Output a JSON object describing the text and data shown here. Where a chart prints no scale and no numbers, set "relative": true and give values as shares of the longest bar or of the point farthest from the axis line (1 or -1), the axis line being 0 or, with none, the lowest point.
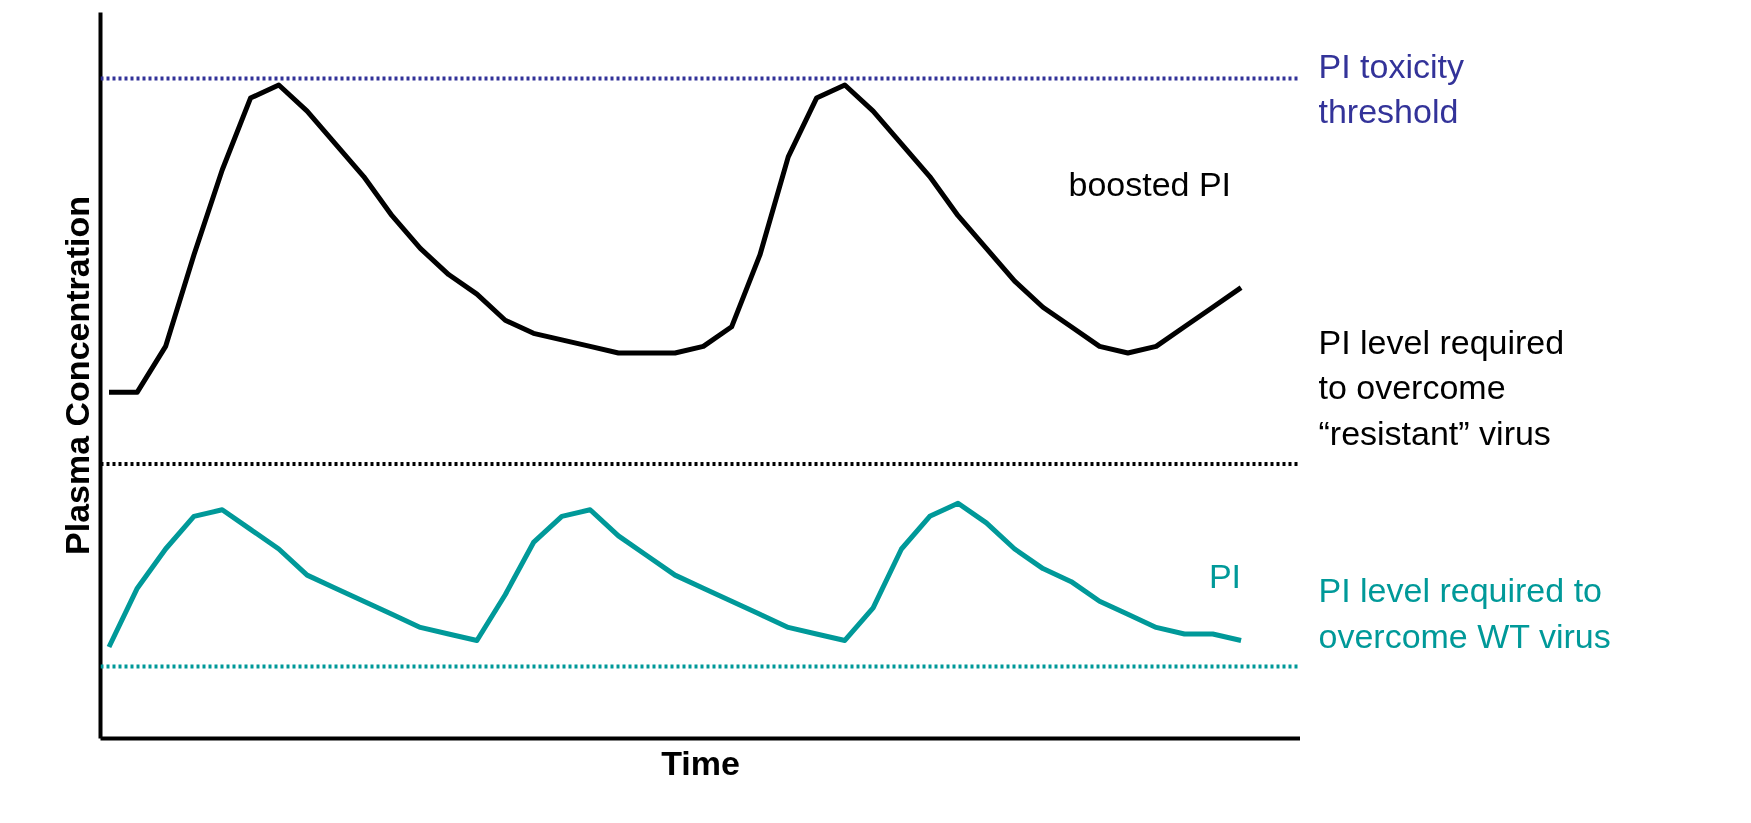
{
  "chart_data": {
    "type": "line",
    "relative": true,
    "xlabel": "Time",
    "ylabel": "Plasma Concentration",
    "line_style": "solid",
    "categories": [
      null,
      null,
      null,
      null,
      null,
      null,
      null,
      null,
      null,
      null,
      null,
      null,
      null,
      null,
      null,
      null,
      null,
      null,
      null,
      null,
      null,
      null,
      null,
      null,
      null,
      null,
      null,
      null,
      null,
      null,
      null,
      null,
      null,
      null,
      null,
      null,
      null,
      null,
      null,
      null,
      null
    ],
    "series": [
      {
        "name": "boosted PI",
        "color": "#000000",
        "values": [
          0.53,
          0.53,
          0.6,
          0.74,
          0.87,
          0.98,
          1.0,
          0.96,
          0.91,
          0.86,
          0.8,
          0.75,
          0.71,
          0.68,
          0.64,
          0.62,
          0.61,
          0.6,
          0.59,
          0.59,
          0.59,
          0.6,
          0.63,
          0.74,
          0.89,
          0.98,
          1.0,
          0.96,
          0.91,
          0.86,
          0.8,
          0.75,
          0.7,
          0.66,
          0.63,
          0.6,
          0.59,
          0.6,
          0.63,
          0.66,
          0.69
        ]
      },
      {
        "name": "PI",
        "color": "#009999",
        "values": [
          0.14,
          0.23,
          0.29,
          0.34,
          0.35,
          0.32,
          0.29,
          0.25,
          0.23,
          0.21,
          0.19,
          0.17,
          0.16,
          0.15,
          0.22,
          0.3,
          0.34,
          0.35,
          0.31,
          0.28,
          0.25,
          0.23,
          0.21,
          0.19,
          0.17,
          0.16,
          0.15,
          0.2,
          0.29,
          0.34,
          0.36,
          0.33,
          0.29,
          0.26,
          0.24,
          0.21,
          0.19,
          0.17,
          0.16,
          0.16,
          0.15
        ]
      }
    ],
    "ref_lines": [
      {
        "axis": "y",
        "value": 1.01,
        "label": "PI toxicity\nthreshold",
        "color": "#333399",
        "line_style": "dotted"
      },
      {
        "axis": "y",
        "value": 0.42,
        "label": "PI level required\nto overcome\n“resistant” virus",
        "color": "#000000",
        "line_style": "dotted"
      },
      {
        "axis": "y",
        "value": 0.11,
        "label": "PI level required to\novercome WT virus",
        "color": "#009999",
        "line_style": "dotted"
      }
    ]
  }
}
